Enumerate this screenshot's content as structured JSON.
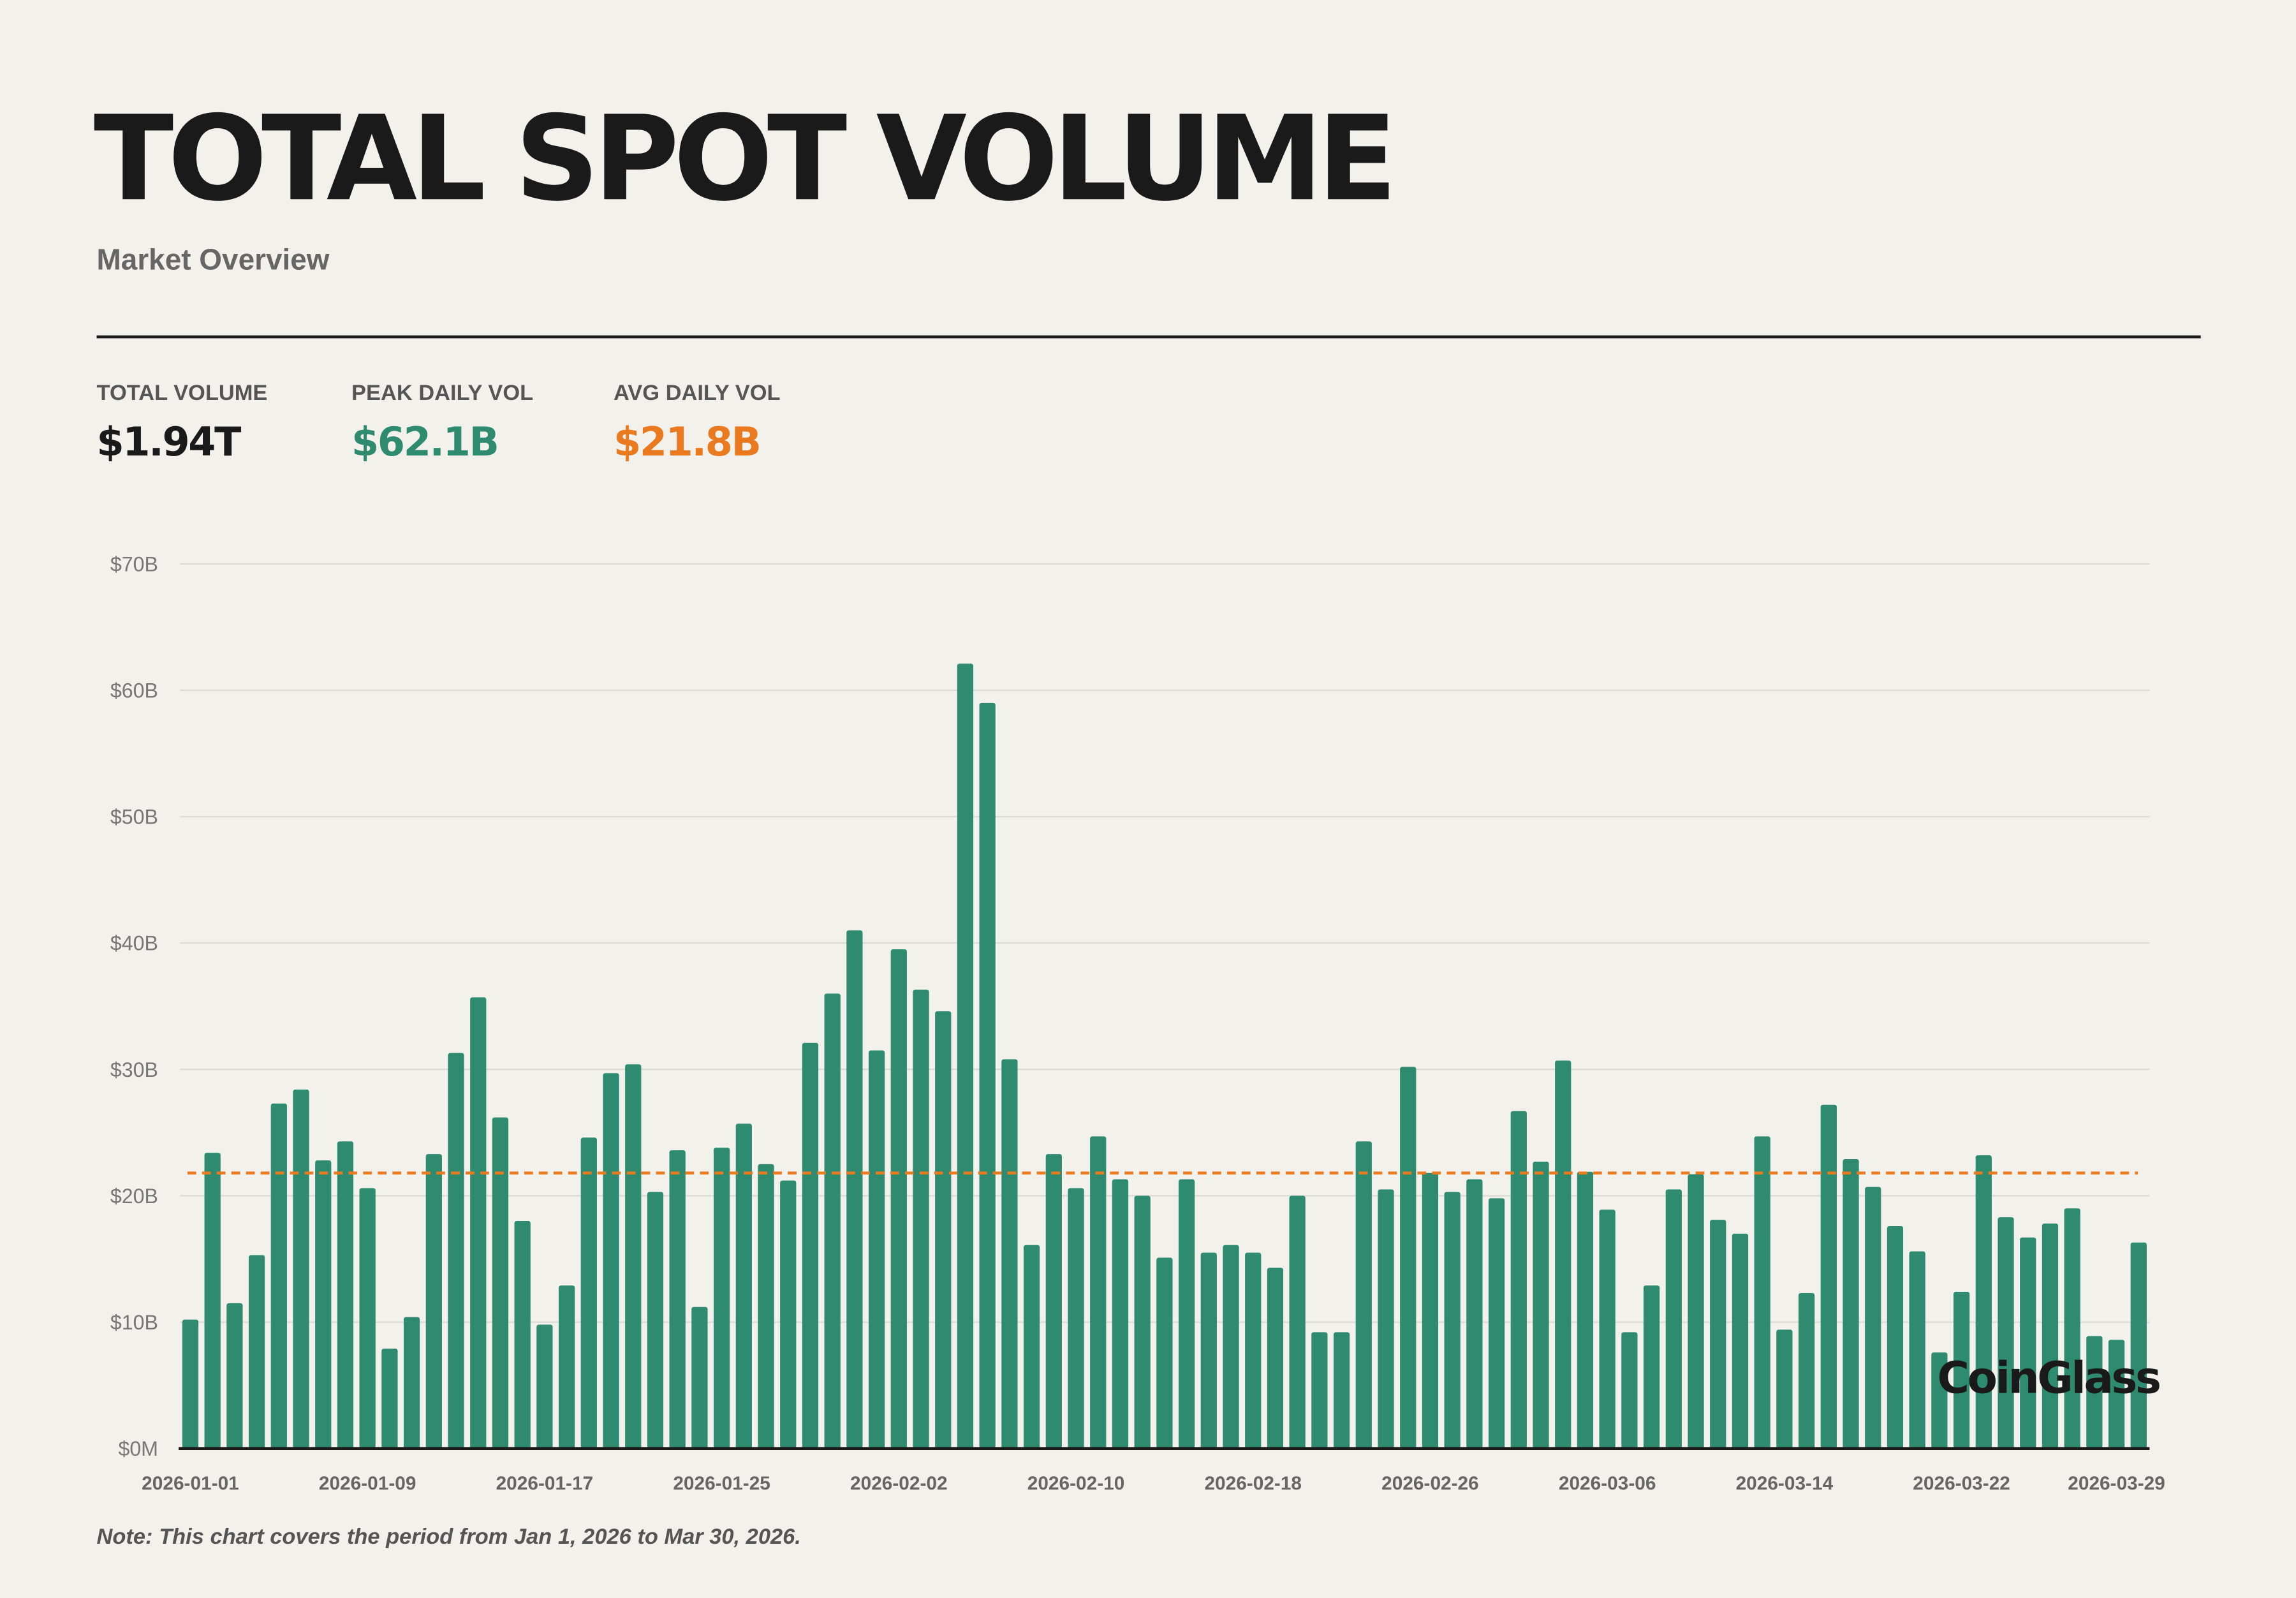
{
  "header": {
    "title": "TOTAL SPOT VOLUME",
    "subtitle": "Market Overview"
  },
  "stats": [
    {
      "label": "TOTAL VOLUME",
      "value": "$1.94T",
      "color": "#1a1a1a"
    },
    {
      "label": "PEAK DAILY VOL",
      "value": "$62.1B",
      "color": "#2e8b6f"
    },
    {
      "label": "AVG DAILY VOL",
      "value": "$21.8B",
      "color": "#ea7a1f"
    }
  ],
  "note": "Note: This chart covers the period from Jan 1, 2026 to Mar 30, 2026.",
  "logo": "CoinGlass",
  "chart_data": {
    "type": "bar",
    "start_date": "2026-01-01",
    "end_date": "2026-03-30",
    "bar_color": "#2e8b6f",
    "avg_line": {
      "value": 21.8,
      "color": "#ea7a1f",
      "style": "dashed"
    },
    "ylim": [
      0,
      70
    ],
    "yticks": [
      {
        "v": 0,
        "label": "$0M"
      },
      {
        "v": 10,
        "label": "$10B"
      },
      {
        "v": 20,
        "label": "$20B"
      },
      {
        "v": 30,
        "label": "$30B"
      },
      {
        "v": 40,
        "label": "$40B"
      },
      {
        "v": 50,
        "label": "$50B"
      },
      {
        "v": 60,
        "label": "$60B"
      },
      {
        "v": 70,
        "label": "$70B"
      }
    ],
    "xtick_labels": [
      "2026-01-01",
      "2026-01-09",
      "2026-01-17",
      "2026-01-25",
      "2026-02-02",
      "2026-02-10",
      "2026-02-18",
      "2026-02-26",
      "2026-03-06",
      "2026-03-14",
      "2026-03-22",
      "2026-03-29"
    ],
    "grid": true,
    "unit": "USD billions",
    "values": [
      10.2,
      23.4,
      11.5,
      15.3,
      27.3,
      28.4,
      22.8,
      24.3,
      20.6,
      7.9,
      10.4,
      23.3,
      31.3,
      35.7,
      26.2,
      18.0,
      9.8,
      12.9,
      24.6,
      29.7,
      30.4,
      20.3,
      23.6,
      11.2,
      23.8,
      25.7,
      22.5,
      21.2,
      32.1,
      36.0,
      41.0,
      31.5,
      39.5,
      36.3,
      34.6,
      62.1,
      59.0,
      30.8,
      16.1,
      23.3,
      20.6,
      24.7,
      21.3,
      20.0,
      15.1,
      21.3,
      15.5,
      16.1,
      15.5,
      14.3,
      20.0,
      9.2,
      9.2,
      24.3,
      20.5,
      30.2,
      21.8,
      20.3,
      21.3,
      19.8,
      26.7,
      22.7,
      30.7,
      21.9,
      18.9,
      9.2,
      12.9,
      20.5,
      21.7,
      18.1,
      17.0,
      24.7,
      9.4,
      12.3,
      27.2,
      22.9,
      20.7,
      17.6,
      15.6,
      7.6,
      12.4,
      23.2,
      18.3,
      16.7,
      17.8,
      19.0,
      8.9,
      8.6,
      16.3
    ]
  }
}
